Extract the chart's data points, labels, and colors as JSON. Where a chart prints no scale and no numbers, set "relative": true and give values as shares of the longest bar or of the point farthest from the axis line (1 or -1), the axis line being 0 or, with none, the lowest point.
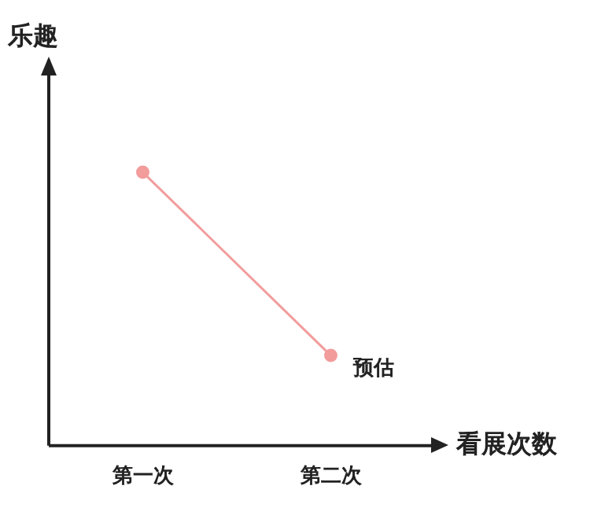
{
  "chart_data": {
    "type": "line",
    "xlabel": "看展次数",
    "ylabel": "乐趣",
    "categories": [
      "第一次",
      "第二次"
    ],
    "relative": true,
    "legend": false,
    "grid": false,
    "marker": "circle",
    "line_style": "solid",
    "series": [
      {
        "name": "预估",
        "color": "#f29c9c",
        "values": [
          1,
          0.33
        ]
      }
    ]
  }
}
